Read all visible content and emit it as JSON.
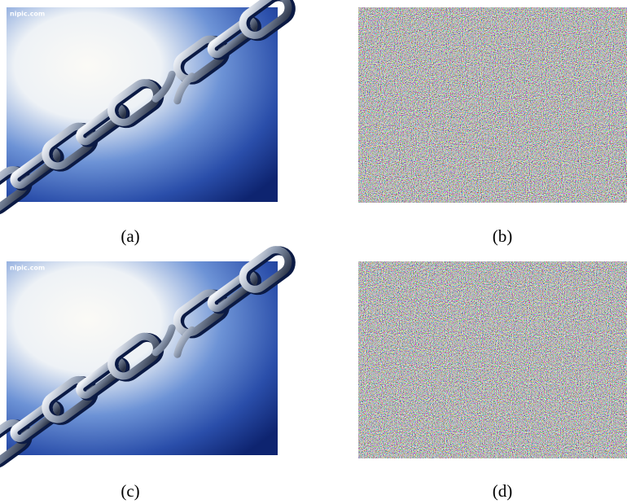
{
  "panels": [
    {
      "caption": "(a)",
      "watermark": "nipic.com"
    },
    {
      "caption": "(b)"
    },
    {
      "caption": "(c)",
      "watermark": "nipic.com"
    },
    {
      "caption": "(d)"
    }
  ]
}
